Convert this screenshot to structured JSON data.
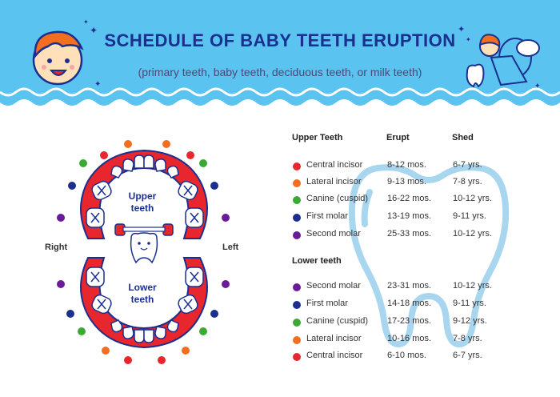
{
  "title": "SCHEDULE OF BABY TEETH ERUPTION",
  "subtitle": "(primary teeth, baby teeth, deciduous teeth, or milk teeth)",
  "labels": {
    "right": "Right",
    "left": "Left",
    "upper": [
      "Upper",
      "teeth"
    ],
    "lower": [
      "Lower",
      "teeth"
    ]
  },
  "table": {
    "upper_header": "Upper Teeth",
    "erupt_header": "Erupt",
    "shed_header": "Shed",
    "lower_header": "Lower teeth",
    "upper_rows": [
      {
        "name": "Central incisor",
        "erupt": "8-12 mos.",
        "shed": "6-7 yrs.",
        "color": "#e8262d"
      },
      {
        "name": "Lateral incisor",
        "erupt": "9-13 mos.",
        "shed": "7-8 yrs.",
        "color": "#f26f21"
      },
      {
        "name": "Canine (cuspid)",
        "erupt": "16-22 mos.",
        "shed": "10-12 yrs.",
        "color": "#3aaa35"
      },
      {
        "name": "First molar",
        "erupt": "13-19 mos.",
        "shed": "9-11 yrs.",
        "color": "#1b2f8f"
      },
      {
        "name": "Second molar",
        "erupt": "25-33 mos.",
        "shed": "10-12 yrs.",
        "color": "#6a1b9a"
      }
    ],
    "lower_rows": [
      {
        "name": "Second molar",
        "erupt": "23-31 mos.",
        "shed": "10-12 yrs.",
        "color": "#6a1b9a"
      },
      {
        "name": "First molar",
        "erupt": "14-18 mos.",
        "shed": "9-11 yrs.",
        "color": "#1b2f8f"
      },
      {
        "name": "Canine (cuspid)",
        "erupt": "17-23 mos.",
        "shed": "9-12 yrs.",
        "color": "#3aaa35"
      },
      {
        "name": "Lateral incisor",
        "erupt": "10-16 mos.",
        "shed": "7-8 yrs.",
        "color": "#f26f21"
      },
      {
        "name": "Central incisor",
        "erupt": "6-10 mos.",
        "shed": "6-7 yrs.",
        "color": "#e8262d"
      }
    ]
  },
  "colors": {
    "header_bg": "#5bc3ef",
    "gum": "#e8262d",
    "title": "#1b2f8f",
    "tooth_outline": "#a9d6ef"
  }
}
